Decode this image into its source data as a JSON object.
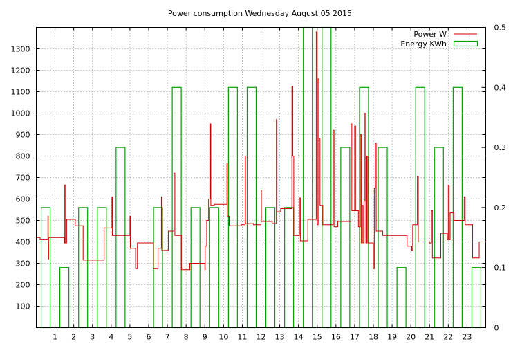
{
  "chart_data": {
    "type": "line",
    "title": "Power consumption Wednesday August 05 2015",
    "xlabel": "",
    "ylabel": "",
    "xlim": [
      0,
      24
    ],
    "ylim": [
      0,
      1400
    ],
    "y2lim": [
      0,
      0.5
    ],
    "grid": true,
    "legend_position": "top-right",
    "x_ticks": [
      "1",
      "2",
      "3",
      "4",
      "5",
      "6",
      "7",
      "8",
      "9",
      "10",
      "11",
      "12",
      "13",
      "14",
      "15",
      "16",
      "17",
      "18",
      "19",
      "20",
      "21",
      "22",
      "23"
    ],
    "y_ticks": [
      "100",
      "200",
      "300",
      "400",
      "500",
      "600",
      "700",
      "800",
      "900",
      "1000",
      "1100",
      "1200",
      "1300"
    ],
    "y2_ticks": [
      "0",
      "0.1",
      "0.2",
      "0.3",
      "0.4",
      "0.5"
    ],
    "series": [
      {
        "name": "Power W",
        "axis": "y",
        "color": "#cc0000",
        "points": [
          [
            0,
            420
          ],
          [
            0.2,
            410
          ],
          [
            0.6,
            410
          ],
          [
            0.62,
            520
          ],
          [
            0.64,
            320
          ],
          [
            0.66,
            420
          ],
          [
            1.0,
            420
          ],
          [
            1.4,
            420
          ],
          [
            1.5,
            395
          ],
          [
            1.52,
            665
          ],
          [
            1.54,
            395
          ],
          [
            1.6,
            395
          ],
          [
            1.62,
            505
          ],
          [
            2.0,
            505
          ],
          [
            2.08,
            475
          ],
          [
            2.2,
            475
          ],
          [
            2.4,
            475
          ],
          [
            2.5,
            315
          ],
          [
            2.7,
            315
          ],
          [
            3.2,
            315
          ],
          [
            3.55,
            315
          ],
          [
            3.62,
            465
          ],
          [
            4.0,
            465
          ],
          [
            4.04,
            610
          ],
          [
            4.06,
            430
          ],
          [
            4.1,
            430
          ],
          [
            4.3,
            430
          ],
          [
            4.5,
            430
          ],
          [
            4.95,
            430
          ],
          [
            5.0,
            520
          ],
          [
            5.02,
            370
          ],
          [
            5.2,
            370
          ],
          [
            5.3,
            275
          ],
          [
            5.4,
            395
          ],
          [
            6.0,
            395
          ],
          [
            6.2,
            395
          ],
          [
            6.25,
            275
          ],
          [
            6.4,
            275
          ],
          [
            6.5,
            370
          ],
          [
            6.65,
            370
          ],
          [
            6.68,
            610
          ],
          [
            6.7,
            360
          ],
          [
            6.9,
            360
          ],
          [
            7.05,
            450
          ],
          [
            7.3,
            450
          ],
          [
            7.35,
            720
          ],
          [
            7.4,
            430
          ],
          [
            7.7,
            430
          ],
          [
            7.75,
            270
          ],
          [
            8.1,
            270
          ],
          [
            8.2,
            300
          ],
          [
            8.4,
            300
          ],
          [
            8.5,
            300
          ],
          [
            8.6,
            300
          ],
          [
            8.95,
            300
          ],
          [
            9.0,
            270
          ],
          [
            9.02,
            380
          ],
          [
            9.05,
            380
          ],
          [
            9.1,
            500
          ],
          [
            9.2,
            600
          ],
          [
            9.3,
            950
          ],
          [
            9.32,
            570
          ],
          [
            9.5,
            575
          ],
          [
            9.75,
            575
          ],
          [
            10.0,
            575
          ],
          [
            10.15,
            575
          ],
          [
            10.18,
            765
          ],
          [
            10.2,
            520
          ],
          [
            10.3,
            475
          ],
          [
            10.8,
            475
          ],
          [
            10.95,
            480
          ],
          [
            11.1,
            480
          ],
          [
            11.15,
            800
          ],
          [
            11.17,
            485
          ],
          [
            11.4,
            485
          ],
          [
            11.6,
            480
          ],
          [
            11.95,
            480
          ],
          [
            12.0,
            640
          ],
          [
            12.02,
            495
          ],
          [
            12.4,
            495
          ],
          [
            12.6,
            485
          ],
          [
            12.8,
            485
          ],
          [
            12.82,
            970
          ],
          [
            12.84,
            540
          ],
          [
            13.05,
            555
          ],
          [
            13.5,
            555
          ],
          [
            13.65,
            1125
          ],
          [
            13.7,
            800
          ],
          [
            13.75,
            430
          ],
          [
            14.0,
            430
          ],
          [
            14.05,
            605
          ],
          [
            14.1,
            405
          ],
          [
            14.4,
            405
          ],
          [
            14.5,
            505
          ],
          [
            14.8,
            505
          ],
          [
            14.95,
            1380
          ],
          [
            15.0,
            480
          ],
          [
            15.05,
            1160
          ],
          [
            15.1,
            880
          ],
          [
            15.15,
            570
          ],
          [
            15.3,
            480
          ],
          [
            15.5,
            480
          ],
          [
            15.8,
            480
          ],
          [
            15.85,
            920
          ],
          [
            15.9,
            470
          ],
          [
            16.0,
            470
          ],
          [
            16.1,
            495
          ],
          [
            16.7,
            495
          ],
          [
            16.8,
            950
          ],
          [
            16.85,
            545
          ],
          [
            17.0,
            940
          ],
          [
            17.05,
            545
          ],
          [
            17.2,
            470
          ],
          [
            17.3,
            900
          ],
          [
            17.35,
            395
          ],
          [
            17.4,
            570
          ],
          [
            17.45,
            395
          ],
          [
            17.5,
            590
          ],
          [
            17.55,
            1000
          ],
          [
            17.6,
            395
          ],
          [
            17.65,
            800
          ],
          [
            17.7,
            395
          ],
          [
            17.9,
            395
          ],
          [
            18.0,
            275
          ],
          [
            18.05,
            650
          ],
          [
            18.1,
            860
          ],
          [
            18.15,
            450
          ],
          [
            18.3,
            450
          ],
          [
            18.5,
            430
          ],
          [
            18.8,
            430
          ],
          [
            19.0,
            430
          ],
          [
            19.5,
            430
          ],
          [
            19.8,
            380
          ],
          [
            20.0,
            380
          ],
          [
            20.05,
            360
          ],
          [
            20.1,
            480
          ],
          [
            20.3,
            480
          ],
          [
            20.35,
            705
          ],
          [
            20.4,
            400
          ],
          [
            20.9,
            400
          ],
          [
            21.0,
            395
          ],
          [
            21.1,
            545
          ],
          [
            21.15,
            325
          ],
          [
            21.5,
            325
          ],
          [
            21.6,
            440
          ],
          [
            21.9,
            440
          ],
          [
            21.95,
            410
          ],
          [
            22.0,
            665
          ],
          [
            22.05,
            410
          ],
          [
            22.1,
            535
          ],
          [
            22.3,
            500
          ],
          [
            22.8,
            500
          ],
          [
            22.85,
            610
          ],
          [
            22.9,
            480
          ],
          [
            23.2,
            480
          ],
          [
            23.3,
            325
          ],
          [
            23.5,
            325
          ],
          [
            23.65,
            400
          ],
          [
            24.0,
            400
          ]
        ]
      },
      {
        "name": "Energy KWh",
        "axis": "y2",
        "color": "#00a000",
        "bars": [
          [
            0.5,
            0.2
          ],
          [
            1.5,
            0.1
          ],
          [
            2.5,
            0.2
          ],
          [
            3.5,
            0.2
          ],
          [
            4.5,
            0.3
          ],
          [
            5.5,
            0.0
          ],
          [
            6.5,
            0.2
          ],
          [
            7.5,
            0.4
          ],
          [
            8.5,
            0.2
          ],
          [
            9.5,
            0.2
          ],
          [
            10.5,
            0.4
          ],
          [
            11.5,
            0.4
          ],
          [
            12.5,
            0.2
          ],
          [
            13.5,
            0.2
          ],
          [
            14.5,
            0.5
          ],
          [
            15.5,
            0.5
          ],
          [
            16.5,
            0.3
          ],
          [
            17.5,
            0.4
          ],
          [
            18.5,
            0.3
          ],
          [
            19.5,
            0.1
          ],
          [
            20.5,
            0.4
          ],
          [
            21.5,
            0.3
          ],
          [
            22.5,
            0.4
          ],
          [
            23.5,
            0.1
          ]
        ]
      }
    ]
  }
}
